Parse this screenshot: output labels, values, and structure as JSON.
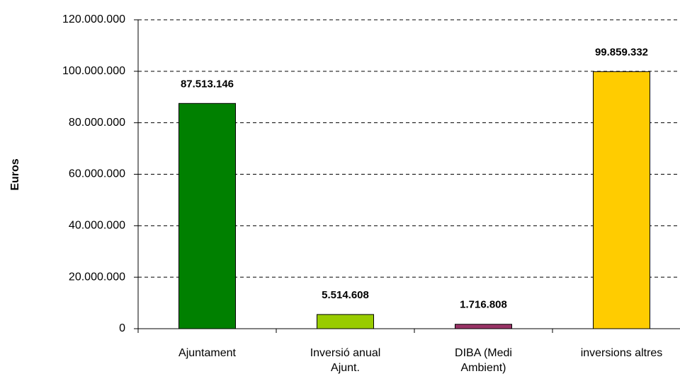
{
  "chart_data": {
    "type": "bar",
    "y_label": "Euros",
    "categories": [
      [
        "Ajuntament"
      ],
      [
        "Inversió anual",
        "Ajunt."
      ],
      [
        "DIBA (Medi",
        "Ambient)"
      ],
      [
        "inversions altres"
      ]
    ],
    "values": [
      87513146,
      5514608,
      1716808,
      99859332
    ],
    "value_labels": [
      "87.513.146",
      "5.514.608",
      "1.716.808",
      "99.859.332"
    ],
    "colors": [
      "#008000",
      "#99cc00",
      "#993366",
      "#ffcc00"
    ],
    "ylim": [
      0,
      120000000
    ],
    "yticks": [
      0,
      {
        "value": 20000000,
        "label": "20.000.000"
      },
      {
        "value": 40000000,
        "label": "40.000.000"
      },
      {
        "value": 60000000,
        "label": "60.000.000"
      },
      {
        "value": 80000000,
        "label": "80.000.000"
      },
      {
        "value": 100000000,
        "label": "100.000.000"
      },
      {
        "value": 120000000,
        "label": "120.000.000"
      }
    ],
    "grid": true
  }
}
